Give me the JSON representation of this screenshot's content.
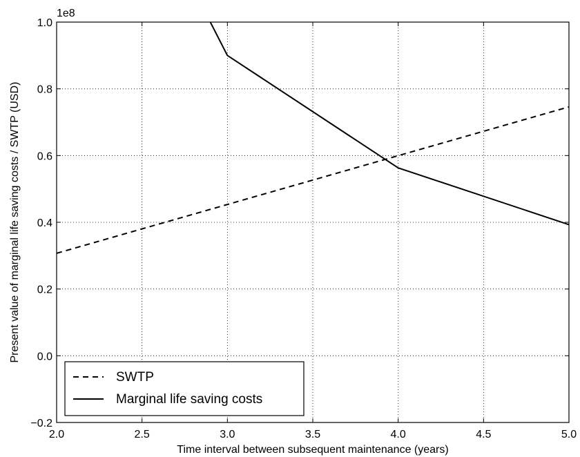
{
  "chart_data": {
    "type": "line",
    "xlabel": "Time interval between subsequent maintenance (years)",
    "ylabel": "Present value of marginal life saving costs / SWTP (USD)",
    "y_offset_label": "1e8",
    "xlim": [
      2.0,
      5.0
    ],
    "ylim": [
      -0.2,
      1.0
    ],
    "x_ticks": [
      "2.0",
      "2.5",
      "3.0",
      "3.5",
      "4.0",
      "4.5",
      "5.0"
    ],
    "y_ticks": [
      "−0.2",
      "0.0",
      "0.2",
      "0.4",
      "0.6",
      "0.8",
      "1.0"
    ],
    "grid": true,
    "legend_position": "lower-left",
    "series": [
      {
        "name": "SWTP",
        "style": "dashed",
        "color": "#000000",
        "x": [
          2.0,
          5.0
        ],
        "y": [
          0.307,
          0.746
        ]
      },
      {
        "name": "Marginal life saving costs",
        "style": "solid",
        "color": "#000000",
        "x": [
          2.9,
          3.0,
          4.0,
          5.0
        ],
        "y": [
          1.0,
          0.9,
          0.563,
          0.393
        ]
      }
    ]
  }
}
